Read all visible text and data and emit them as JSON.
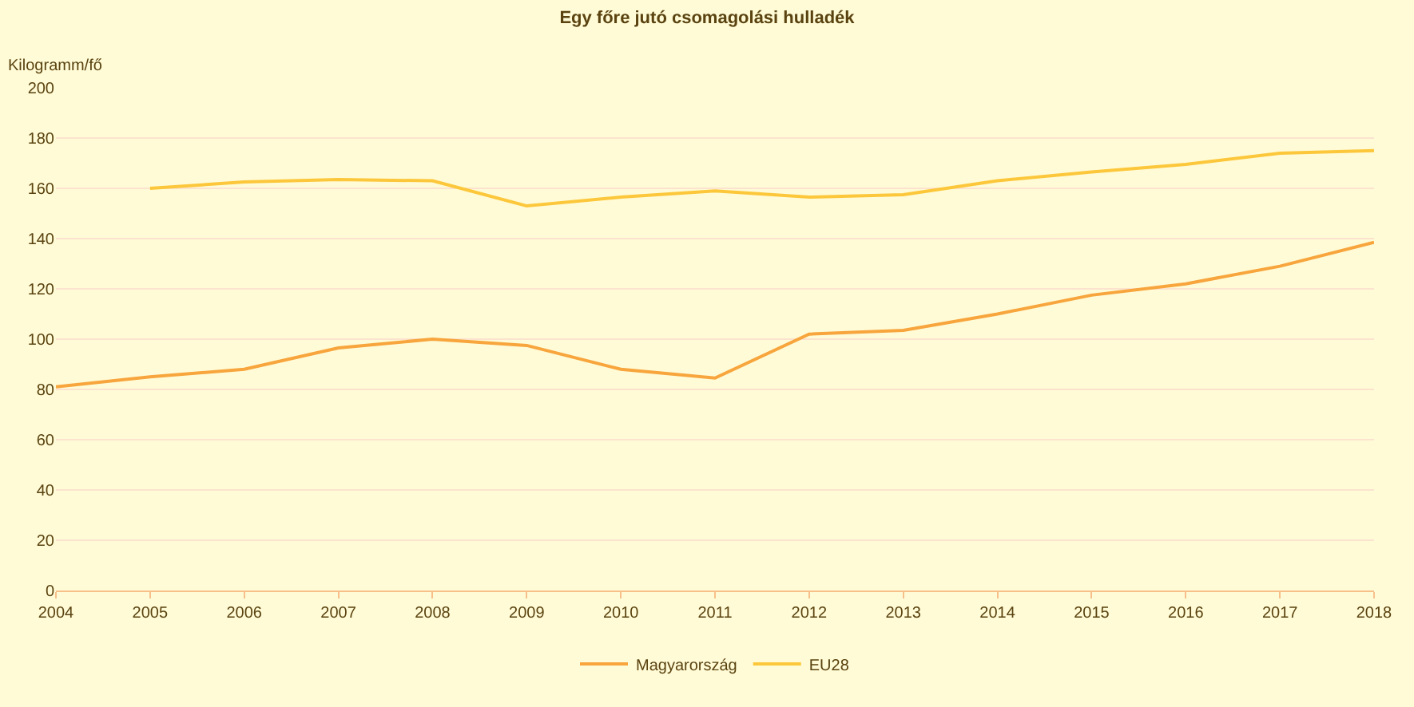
{
  "chart_data": {
    "type": "line",
    "title": "Egy főre jutó csomagolási hulladék",
    "ylabel": "Kilogramm/fő",
    "x": [
      2004,
      2005,
      2006,
      2007,
      2008,
      2009,
      2010,
      2011,
      2012,
      2013,
      2014,
      2015,
      2016,
      2017,
      2018
    ],
    "series": [
      {
        "name": "Magyarország",
        "color": "#f7a53c",
        "values": [
          81,
          85,
          88,
          96.5,
          100,
          97.5,
          88,
          84.5,
          102,
          103.5,
          110,
          117.5,
          122,
          129,
          138.5
        ]
      },
      {
        "name": "EU28",
        "color": "#fcc73a",
        "values": [
          null,
          160,
          162.5,
          163.5,
          163,
          153,
          156.5,
          159,
          156.5,
          157.5,
          163,
          166.5,
          169.5,
          174,
          175
        ]
      }
    ],
    "xlim": [
      2004,
      2018
    ],
    "xticks": [
      2004,
      2005,
      2006,
      2007,
      2008,
      2009,
      2010,
      2011,
      2012,
      2013,
      2014,
      2015,
      2016,
      2017,
      2018
    ],
    "ylim": [
      0,
      200
    ],
    "yticks": [
      0,
      20,
      40,
      60,
      80,
      100,
      120,
      140,
      160,
      180,
      200
    ],
    "grid": "y",
    "legend": "bottom",
    "marker": "none",
    "line_style": "solid"
  }
}
